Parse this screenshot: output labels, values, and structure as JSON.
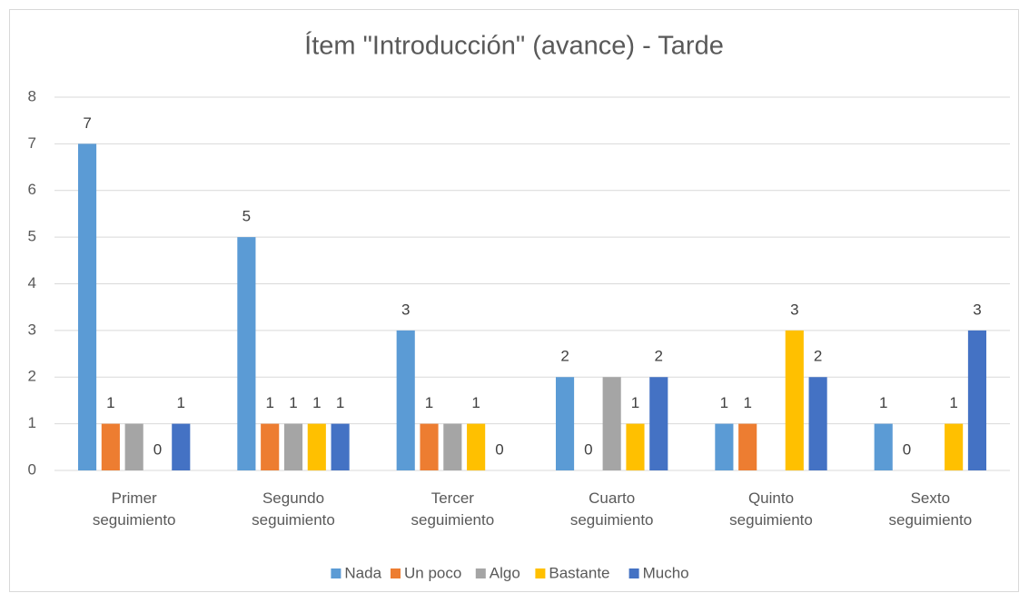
{
  "chart_data": {
    "type": "bar",
    "title": "Ítem \"Introducción\" (avance) - Tarde",
    "categories": [
      "Primer seguimiento",
      "Segundo seguimiento",
      "Tercer seguimiento",
      "Cuarto seguimiento",
      "Quinto seguimiento",
      "Sexto seguimiento"
    ],
    "series": [
      {
        "name": "Nada",
        "color": "#5b9bd5",
        "values": [
          7,
          5,
          3,
          2,
          1,
          1
        ]
      },
      {
        "name": "Un poco",
        "color": "#ed7d31",
        "values": [
          1,
          1,
          1,
          0,
          1,
          0
        ]
      },
      {
        "name": "Algo",
        "color": "#a5a5a5",
        "values": [
          1,
          1,
          1,
          2,
          null,
          null
        ],
        "value_labels": [
          null,
          "1",
          null,
          null,
          null,
          null
        ]
      },
      {
        "name": "Bastante",
        "color": "#ffc000",
        "values": [
          0,
          1,
          1,
          1,
          3,
          1
        ]
      },
      {
        "name": "Mucho",
        "color": "#4472c4",
        "values": [
          1,
          1,
          0,
          2,
          2,
          3
        ]
      }
    ],
    "ylim": [
      0,
      8
    ],
    "yticks": [
      0,
      1,
      2,
      3,
      4,
      5,
      6,
      7,
      8
    ],
    "grid": true,
    "legend": "bottom"
  }
}
